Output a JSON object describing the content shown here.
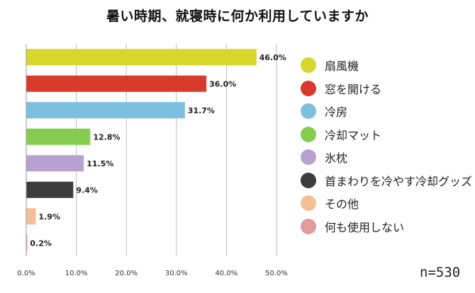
{
  "title": "暑い時期、就寝時に何か利用していますか",
  "note": "n=530",
  "chart_data": {
    "type": "bar",
    "orientation": "horizontal",
    "categories": [
      "扇風機",
      "窓を開ける",
      "冷房",
      "冷却マット",
      "氷枕",
      "首まわりを冷やす冷却グッズ",
      "その他",
      "何も使用しない"
    ],
    "values": [
      46.0,
      36.0,
      31.7,
      12.8,
      11.5,
      9.4,
      1.9,
      0.2
    ],
    "value_labels": [
      "46.0%",
      "36.0%",
      "31.7%",
      "12.8%",
      "11.5%",
      "9.4%",
      "1.9%",
      "0.2%"
    ],
    "colors": [
      "#d7d62a",
      "#d83a2c",
      "#7cc0e0",
      "#86cc4e",
      "#b7a2cf",
      "#3c3c3c",
      "#f4be95",
      "#e39a9a"
    ],
    "xlim": [
      0,
      50
    ],
    "xticks": [
      "0.0%",
      "10.0%",
      "20.0%",
      "30.0%",
      "40.0%",
      "50.0%"
    ],
    "grid": true,
    "legend_position": "right"
  }
}
